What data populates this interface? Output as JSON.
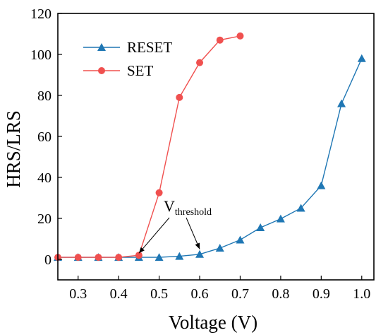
{
  "chart_data": {
    "type": "line",
    "xlabel": "Voltage (V)",
    "ylabel": "HRS/LRS",
    "xlim": [
      0.25,
      1.03
    ],
    "ylim": [
      -10,
      120
    ],
    "xticks": [
      0.3,
      0.4,
      0.5,
      0.6,
      0.7,
      0.8,
      0.9,
      1.0
    ],
    "xtick_labels": [
      "0.3",
      "0.4",
      "0.5",
      "0.6",
      "0.7",
      "0.8",
      "0.9",
      "1.0"
    ],
    "yticks": [
      0,
      20,
      40,
      60,
      80,
      100,
      120
    ],
    "ytick_labels": [
      "0",
      "20",
      "40",
      "60",
      "80",
      "100",
      "120"
    ],
    "grid": false,
    "legend_position": "top-left",
    "series": [
      {
        "name": "RESET",
        "color": "#1f77b4",
        "marker": "triangle",
        "x": [
          0.25,
          0.3,
          0.35,
          0.4,
          0.45,
          0.5,
          0.55,
          0.6,
          0.65,
          0.7,
          0.75,
          0.8,
          0.85,
          0.9,
          0.95,
          1.0
        ],
        "y": [
          1,
          1,
          1,
          1,
          1,
          1,
          1.5,
          2.5,
          5.5,
          9.5,
          15.5,
          19.8,
          25,
          36,
          76,
          98
        ]
      },
      {
        "name": "SET",
        "color": "#f0504f",
        "marker": "circle",
        "x": [
          0.25,
          0.3,
          0.35,
          0.4,
          0.45,
          0.5,
          0.55,
          0.6,
          0.65,
          0.7
        ],
        "y": [
          1,
          1,
          1,
          1,
          2,
          32.5,
          79,
          96,
          107,
          109
        ]
      }
    ],
    "annotation": {
      "main": "V",
      "sub": "threshold",
      "arrows_to": [
        [
          0.45,
          3
        ],
        [
          0.6,
          5
        ]
      ]
    }
  }
}
